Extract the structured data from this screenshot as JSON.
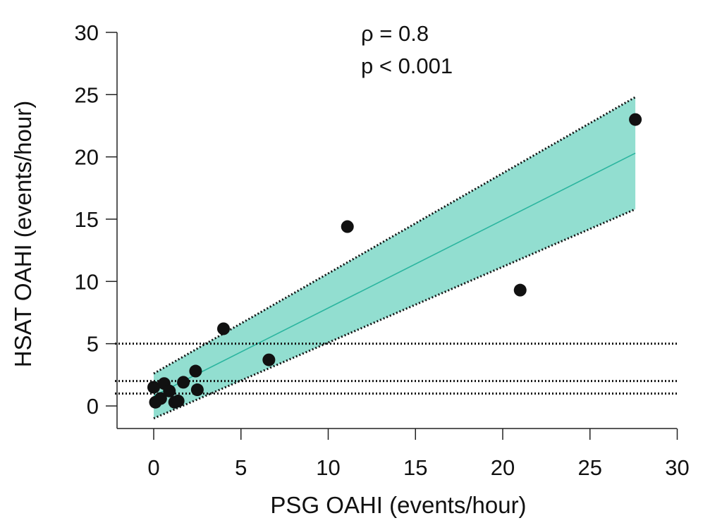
{
  "chart_data": {
    "type": "scatter",
    "xlabel": "PSG OAHI  (events/hour)",
    "ylabel": "HSAT OAHI (events/hour)",
    "xlim": [
      -2,
      30
    ],
    "ylim": [
      -2,
      30
    ],
    "x_ticks": [
      "0",
      "5",
      "10",
      "15",
      "20",
      "25",
      "30"
    ],
    "y_ticks": [
      "0",
      "5",
      "10",
      "15",
      "20",
      "25",
      "30"
    ],
    "annotations": [
      "ρ = 0.8",
      "p < 0.001"
    ],
    "grid": false,
    "legend": "none",
    "colors": {
      "band_fill": "#7fd8c8",
      "fit_line": "#2bb59f",
      "points": "#111111",
      "reference_lines": "#111111"
    },
    "points": [
      {
        "x": 0.0,
        "y": 1.5
      },
      {
        "x": 0.1,
        "y": 0.3
      },
      {
        "x": 0.4,
        "y": 0.6
      },
      {
        "x": 0.6,
        "y": 1.8
      },
      {
        "x": 0.9,
        "y": 1.2
      },
      {
        "x": 1.2,
        "y": 0.3
      },
      {
        "x": 1.4,
        "y": 0.4
      },
      {
        "x": 1.7,
        "y": 1.9
      },
      {
        "x": 2.4,
        "y": 2.8
      },
      {
        "x": 2.5,
        "y": 1.3
      },
      {
        "x": 4.0,
        "y": 6.2
      },
      {
        "x": 6.6,
        "y": 3.7
      },
      {
        "x": 11.1,
        "y": 14.4
      },
      {
        "x": 21.0,
        "y": 9.3
      },
      {
        "x": 27.6,
        "y": 23.0
      }
    ],
    "fit_line": {
      "x": [
        0,
        27.6
      ],
      "y": [
        0.8,
        20.3
      ]
    },
    "confidence_band": {
      "x": [
        0,
        27.6
      ],
      "upper": [
        2.6,
        24.8
      ],
      "lower": [
        -1.0,
        15.8
      ]
    },
    "reference_lines_y": [
      1,
      2,
      5
    ]
  }
}
